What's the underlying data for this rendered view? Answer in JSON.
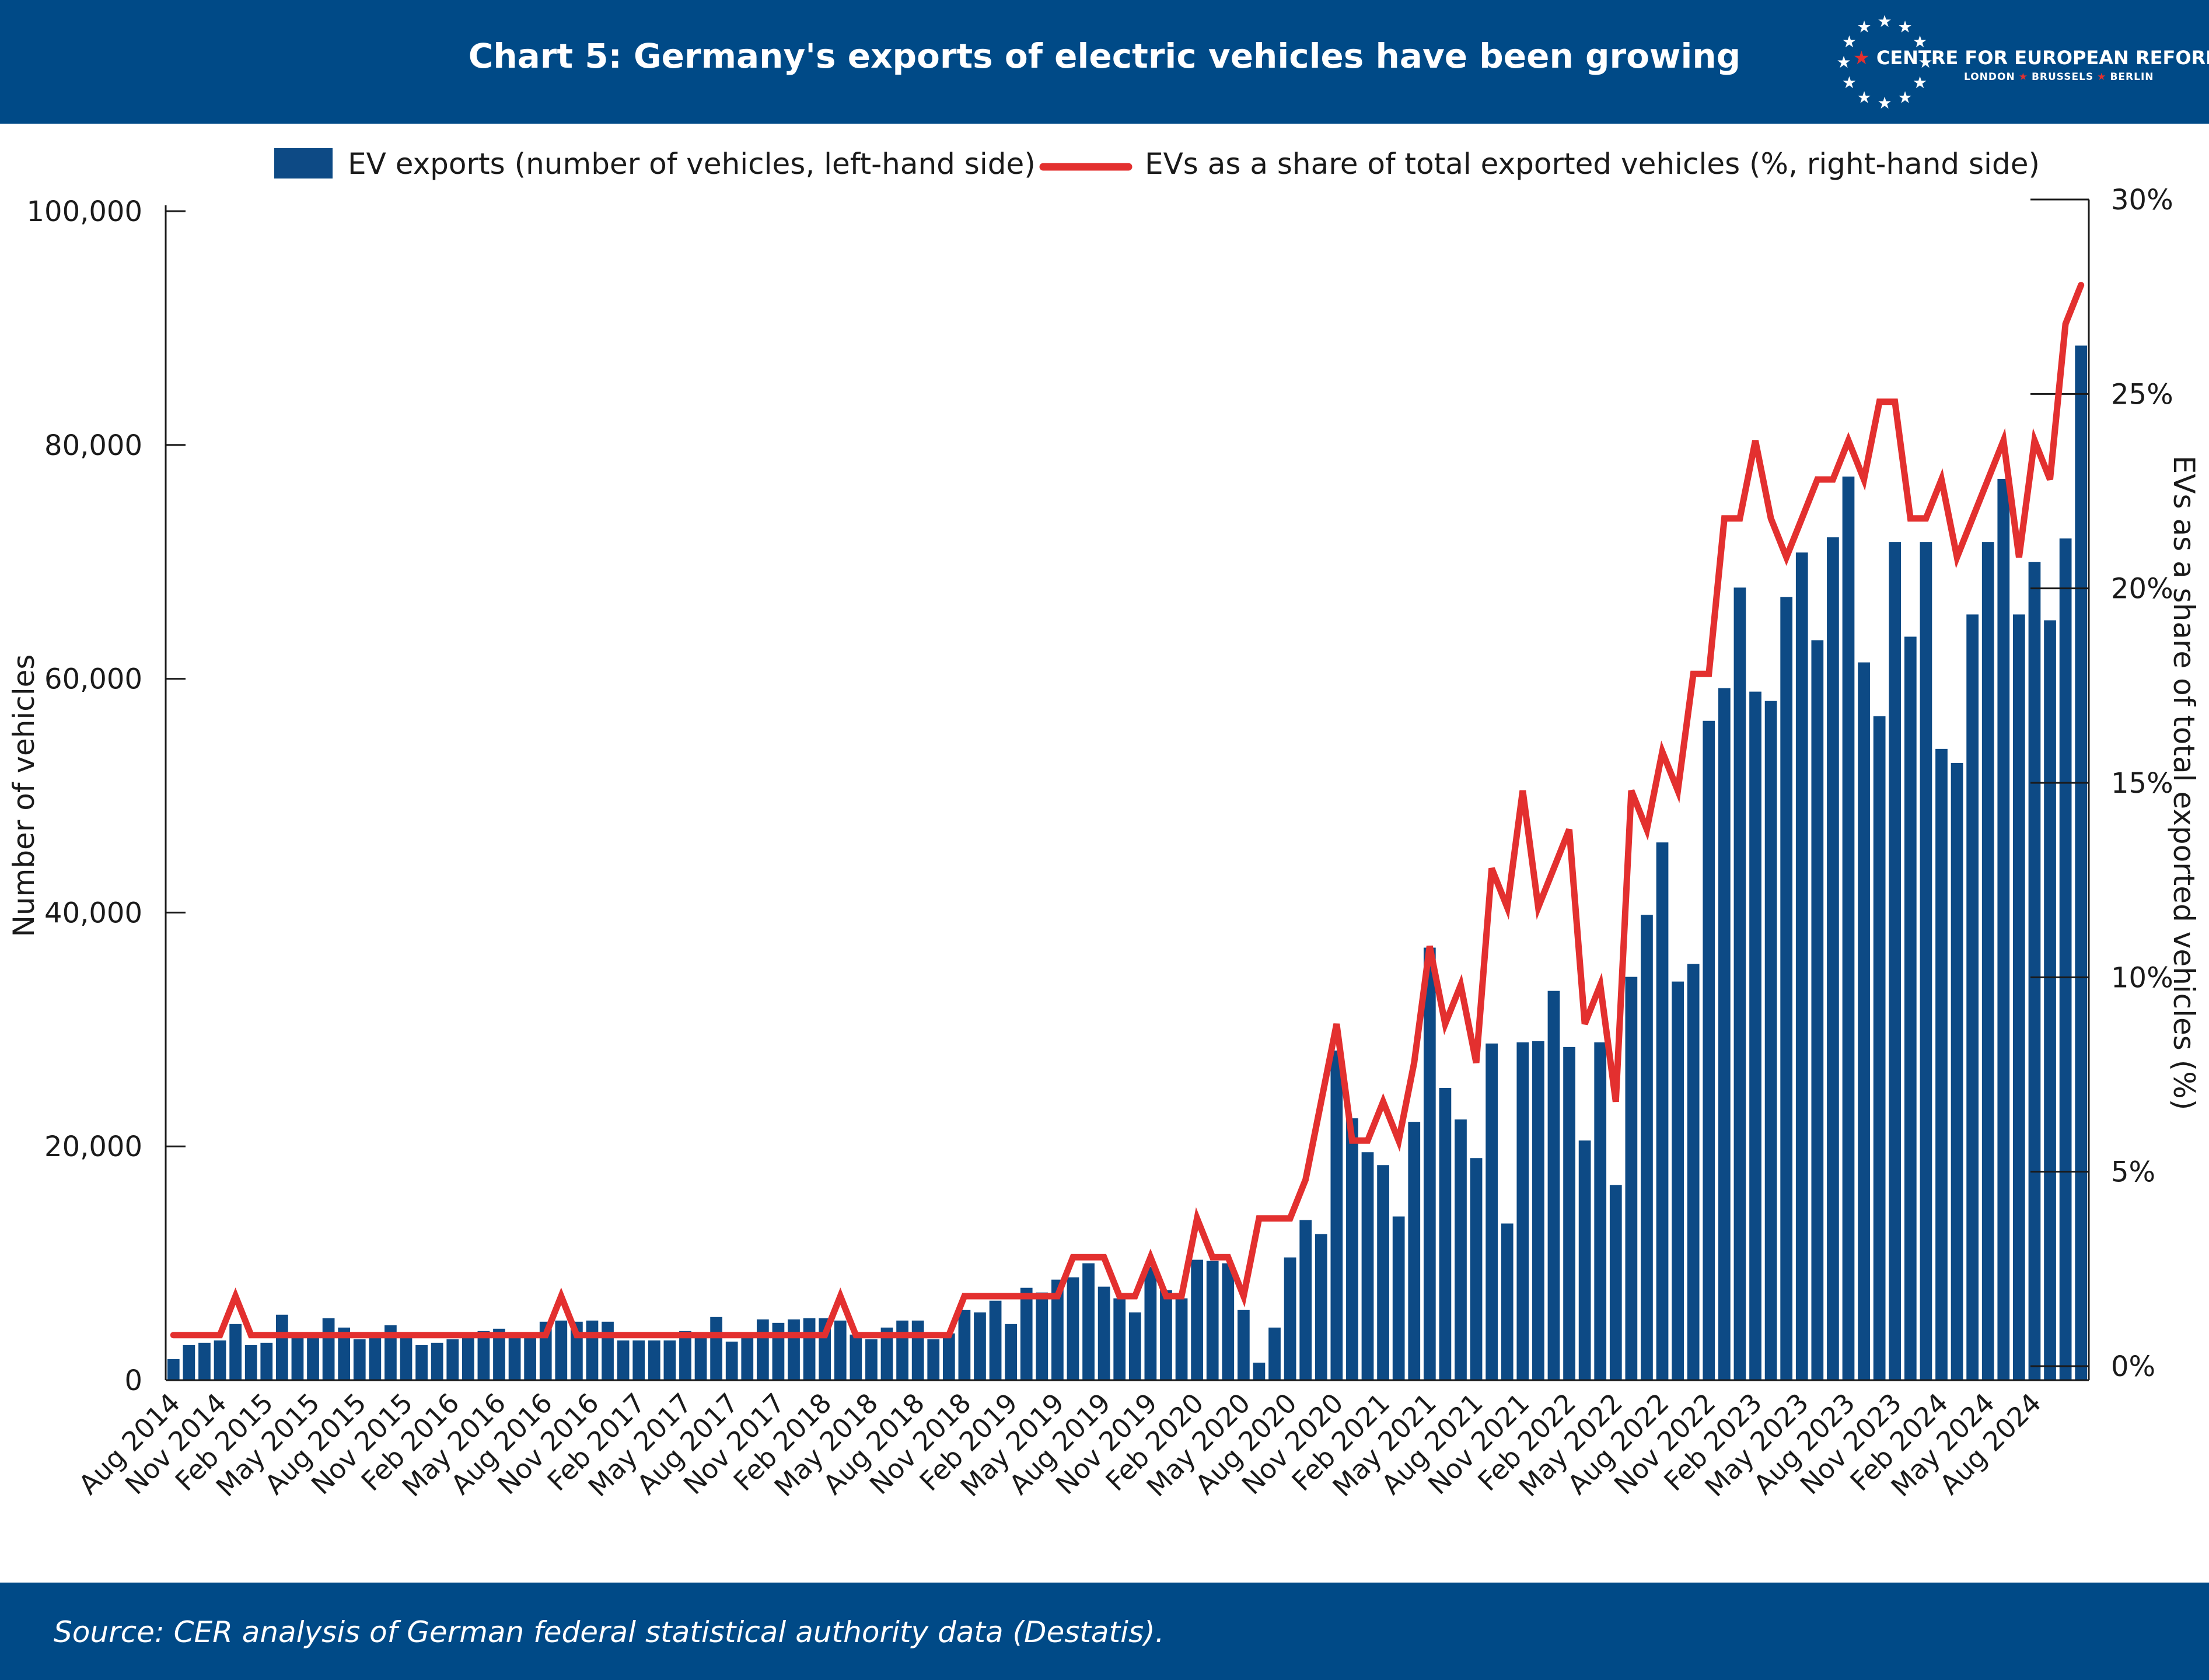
{
  "header": {
    "title": "Chart 5: Germany's exports of electric vehicles have been growing"
  },
  "logo": {
    "name": "CENTRE FOR EUROPEAN REFORM",
    "cities": [
      "LONDON",
      "BRUSSELS",
      "BERLIN"
    ]
  },
  "footer": {
    "source": "Source: CER analysis of German federal statistical authority data (Destatis)."
  },
  "colors": {
    "brand": "#004a87",
    "bars": "#0d4a85",
    "line": "#e3302f"
  },
  "chart_data": {
    "type": "bar",
    "title": "Chart 5: Germany's exports of electric vehicles have been growing",
    "ylabel": "Number of vehicles",
    "y2label": "EVs as a share of total exported vehicles (%)",
    "ylim": [
      0,
      100000
    ],
    "y2lim": [
      0,
      30
    ],
    "yticks": [
      "0",
      "20,000",
      "40,000",
      "60,000",
      "80,000",
      "100,000"
    ],
    "y2ticks": [
      "0%",
      "5%",
      "10%",
      "15%",
      "20%",
      "25%",
      "30%"
    ],
    "xticklabels": [
      "Aug 2014",
      "Nov 2014",
      "Feb 2015",
      "May 2015",
      "Aug 2015",
      "Nov 2015",
      "Feb 2016",
      "May 2016",
      "Aug 2016",
      "Nov 2016",
      "Feb 2017",
      "May 2017",
      "Aug 2017",
      "Nov 2017",
      "Feb 2018",
      "May 2018",
      "Aug 2018",
      "Nov 2018",
      "Feb 2019",
      "May 2019",
      "Aug 2019",
      "Nov 2019",
      "Feb 2020",
      "May 2020",
      "Aug 2020",
      "Nov 2020",
      "Feb 2021",
      "May 2021",
      "Aug 2021",
      "Nov 2021",
      "Feb 2022",
      "May 2022",
      "Aug 2022",
      "Nov 2022",
      "Feb 2023",
      "May 2023",
      "Aug 2023",
      "Nov 2023",
      "Feb 2024",
      "May 2024",
      "Aug 2024"
    ],
    "legend": [
      "EV exports (number of vehicles, left-hand side)",
      "EVs as a share of total exported vehicles (%, right-hand side)"
    ],
    "legend_position": "top",
    "grid": false,
    "x_start": "Aug 2014",
    "x_end": "Oct 2024",
    "x_frequency": "monthly",
    "series": [
      {
        "name": "EV exports (number of vehicles, left-hand side)",
        "type": "bar",
        "axis": "left",
        "values": [
          1800,
          3000,
          3200,
          3400,
          4800,
          3000,
          3200,
          5600,
          4000,
          3800,
          5300,
          4500,
          3500,
          4000,
          4700,
          4100,
          3000,
          3200,
          3500,
          4000,
          4200,
          4400,
          3800,
          3700,
          5000,
          5100,
          5000,
          5100,
          5000,
          3400,
          3400,
          3400,
          3400,
          4200,
          3700,
          5400,
          3300,
          3600,
          5200,
          4900,
          5200,
          5300,
          5300,
          5100,
          3900,
          3500,
          4500,
          5100,
          5100,
          3500,
          4000,
          6000,
          5800,
          6800,
          4800,
          7900,
          7500,
          8600,
          8800,
          10000,
          8000,
          7000,
          5800,
          9700,
          7700,
          7000,
          10300,
          10200,
          10000,
          6000,
          1500,
          4500,
          10500,
          13700,
          12500,
          28200,
          22400,
          19500,
          18400,
          14000,
          22100,
          37000,
          25000,
          22300,
          19000,
          28800,
          13400,
          28900,
          29000,
          33300,
          28500,
          20500,
          28900,
          16700,
          34500,
          39800,
          46000,
          34100,
          35600,
          56400,
          59200,
          67800,
          58900,
          58100,
          67000,
          70800,
          63300,
          72100,
          77300,
          61400,
          56800,
          71700,
          63600,
          71700,
          54000,
          52800,
          65500,
          71700,
          77100,
          65500,
          70000,
          65000,
          72000,
          88500
        ]
      },
      {
        "name": "EVs as a share of total exported vehicles (%, right-hand side)",
        "type": "line",
        "axis": "right",
        "values": [
          0.8,
          0.8,
          0.8,
          0.8,
          1.8,
          0.8,
          0.8,
          0.8,
          0.8,
          0.8,
          0.8,
          0.8,
          0.8,
          0.8,
          0.8,
          0.8,
          0.8,
          0.8,
          0.8,
          0.8,
          0.8,
          0.8,
          0.8,
          0.8,
          0.8,
          1.8,
          0.8,
          0.8,
          0.8,
          0.8,
          0.8,
          0.8,
          0.8,
          0.8,
          0.8,
          0.8,
          0.8,
          0.8,
          0.8,
          0.8,
          0.8,
          0.8,
          0.8,
          1.8,
          0.8,
          0.8,
          0.8,
          0.8,
          0.8,
          0.8,
          0.8,
          1.8,
          1.8,
          1.8,
          1.8,
          1.8,
          1.8,
          1.8,
          2.8,
          2.8,
          2.8,
          1.8,
          1.8,
          2.8,
          1.8,
          1.8,
          3.8,
          2.8,
          2.8,
          1.8,
          3.8,
          3.8,
          3.8,
          4.8,
          6.8,
          8.8,
          5.8,
          5.8,
          6.8,
          5.8,
          7.8,
          10.8,
          8.8,
          9.8,
          7.8,
          12.8,
          11.8,
          14.8,
          11.8,
          12.8,
          13.8,
          8.8,
          9.8,
          6.8,
          14.8,
          13.8,
          15.8,
          14.8,
          17.8,
          17.8,
          21.8,
          21.8,
          23.8,
          21.8,
          20.8,
          21.8,
          22.8,
          22.8,
          23.8,
          22.8,
          24.8,
          24.8,
          21.8,
          21.8,
          22.8,
          20.8,
          21.8,
          22.8,
          23.8,
          20.8,
          23.8,
          22.8,
          26.8,
          27.8
        ]
      }
    ]
  }
}
